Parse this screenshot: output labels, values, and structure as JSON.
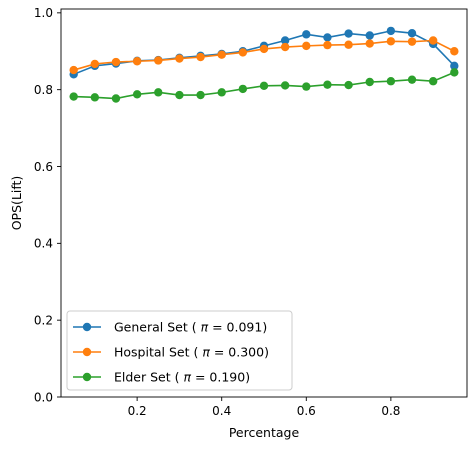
{
  "chart_data": {
    "type": "line",
    "title": "",
    "xlabel": "Percentage",
    "ylabel": "OPS(Lift)",
    "xlim": [
      0.02,
      0.98
    ],
    "ylim": [
      0.0,
      1.01
    ],
    "xticks": [
      0.2,
      0.4,
      0.6,
      0.8
    ],
    "xtick_labels": [
      "0.2",
      "0.4",
      "0.6",
      "0.8"
    ],
    "yticks": [
      0.0,
      0.2,
      0.4,
      0.6,
      0.8,
      1.0
    ],
    "ytick_labels": [
      "0.0",
      "0.2",
      "0.4",
      "0.6",
      "0.8",
      "1.0"
    ],
    "grid": false,
    "legend_position": "lower-left",
    "x": [
      0.05,
      0.1,
      0.15,
      0.2,
      0.25,
      0.3,
      0.35,
      0.4,
      0.45,
      0.5,
      0.55,
      0.6,
      0.65,
      0.7,
      0.75,
      0.8,
      0.85,
      0.9,
      0.95
    ],
    "series": [
      {
        "name": "General Set ( π = 0.091)",
        "legend_prefix": "General Set ( ",
        "legend_symbol": "π",
        "legend_suffix": " = 0.091)",
        "color": "#1f77b4",
        "values": [
          0.84,
          0.862,
          0.868,
          0.875,
          0.877,
          0.883,
          0.888,
          0.893,
          0.9,
          0.914,
          0.928,
          0.944,
          0.936,
          0.946,
          0.941,
          0.953,
          0.947,
          0.919,
          0.862
        ]
      },
      {
        "name": "Hospital Set ( π = 0.300)",
        "legend_prefix": "Hospital Set ( ",
        "legend_symbol": "π",
        "legend_suffix": " = 0.300)",
        "color": "#ff7f0e",
        "values": [
          0.851,
          0.867,
          0.872,
          0.874,
          0.876,
          0.881,
          0.885,
          0.891,
          0.897,
          0.906,
          0.911,
          0.914,
          0.916,
          0.917,
          0.92,
          0.926,
          0.925,
          0.928,
          0.9
        ]
      },
      {
        "name": "Elder Set ( π = 0.190)",
        "legend_prefix": "Elder Set ( ",
        "legend_symbol": "π",
        "legend_suffix": " = 0.190)",
        "color": "#2ca02c",
        "values": [
          0.782,
          0.78,
          0.777,
          0.788,
          0.793,
          0.786,
          0.786,
          0.793,
          0.802,
          0.81,
          0.811,
          0.808,
          0.813,
          0.812,
          0.82,
          0.822,
          0.826,
          0.822,
          0.845
        ]
      }
    ]
  }
}
